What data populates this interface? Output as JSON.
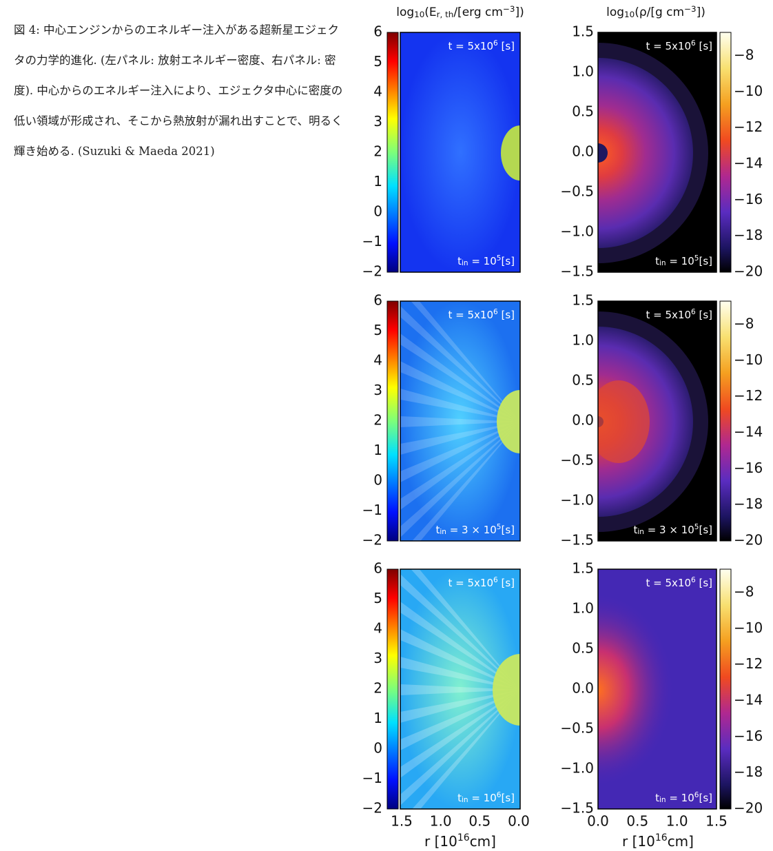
{
  "caption": "図 4: 中心エンジンからのエネルギー注入がある超新星エジェクタの力学的進化. (左パネル: 放射エネルギー密度、右パネル: 密度). 中心からのエネルギー注入により、エジェクタ中心に密度の低い領域が形成され、そこから熱放射が漏れ出すことで、明るく輝き始める. (Suzuki & Maeda 2021)",
  "columns": [
    {
      "title": [
        {
          "text": "log"
        },
        {
          "text": "10",
          "sub": true
        },
        {
          "text": "(E"
        },
        {
          "text": "r, th",
          "sub": true
        },
        {
          "text": "/[erg cm"
        },
        {
          "text": "−3",
          "sup": true
        },
        {
          "text": "])"
        }
      ],
      "y_ticks": [
        "6",
        "5",
        "4",
        "3",
        "2",
        "1",
        "0",
        "−1",
        "−2"
      ],
      "x_ticks": [
        "1.5",
        "1.0",
        "0.5",
        "0.0"
      ],
      "x_label": [
        {
          "text": "r [10"
        },
        {
          "text": "16",
          "sup": true
        },
        {
          "text": "cm]"
        }
      ]
    },
    {
      "title": [
        {
          "text": "log"
        },
        {
          "text": "10",
          "sub": true
        },
        {
          "text": "(ρ/[g cm"
        },
        {
          "text": "−3",
          "sup": true
        },
        {
          "text": "])"
        }
      ],
      "y_ticks": [
        "1.5",
        "1.0",
        "0.5",
        "0.0",
        "−0.5",
        "−1.0",
        "−1.5"
      ],
      "x_ticks": [
        "0.0",
        "0.5",
        "1.0",
        "1.5"
      ],
      "x_label": [
        {
          "text": "r [10"
        },
        {
          "text": "16",
          "sup": true
        },
        {
          "text": "cm]"
        }
      ],
      "colorbar_ticks": [
        "−8",
        "−10",
        "−12",
        "−14",
        "−16",
        "−18",
        "−20"
      ]
    }
  ],
  "rows": [
    {
      "t_label": [
        {
          "text": "t = 5x10"
        },
        {
          "text": "6",
          "sup": true
        },
        {
          "text": " [s]"
        }
      ],
      "tin_label": [
        {
          "text": "t"
        },
        {
          "text": "in",
          "sub": true
        },
        {
          "text": " = 10"
        },
        {
          "text": "5",
          "sup": true
        },
        {
          "text": "[s]"
        }
      ]
    },
    {
      "t_label": [
        {
          "text": "t = 5x10"
        },
        {
          "text": "6",
          "sup": true
        },
        {
          "text": " [s]"
        }
      ],
      "tin_label": [
        {
          "text": "t"
        },
        {
          "text": "in",
          "sub": true
        },
        {
          "text": " = 3 × 10"
        },
        {
          "text": "5",
          "sup": true
        },
        {
          "text": "[s]"
        }
      ]
    },
    {
      "t_label": [
        {
          "text": "t = 5x10"
        },
        {
          "text": "6",
          "sup": true
        },
        {
          "text": " [s]"
        }
      ],
      "tin_label": [
        {
          "text": "t"
        },
        {
          "text": "in",
          "sub": true
        },
        {
          "text": " = 10"
        },
        {
          "text": "6",
          "sup": true
        },
        {
          "text": "[s]"
        }
      ]
    }
  ]
}
